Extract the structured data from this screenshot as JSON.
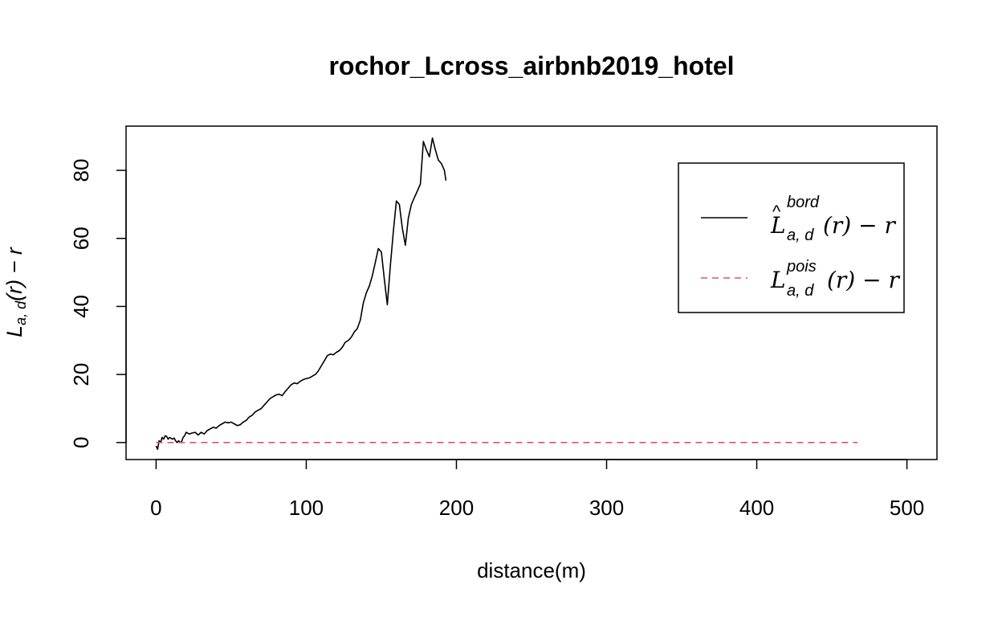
{
  "chart_data": {
    "type": "line",
    "title": "rochor_Lcross_airbnb2019_hotel",
    "xlabel": "distance(m)",
    "ylabel": {
      "main": "L",
      "sub": "a, d",
      "rest": "(r) − r"
    },
    "xlim": [
      -20,
      520
    ],
    "ylim": [
      -5,
      93
    ],
    "x_ticks": [
      0,
      100,
      200,
      300,
      400,
      500
    ],
    "y_ticks": [
      0,
      20,
      40,
      60,
      80
    ],
    "grid": false,
    "legend": {
      "position": "top-right",
      "entries": [
        {
          "main": "L",
          "hat": "^",
          "sup": "bord",
          "sub": "a, d",
          "rest": "(r) − r",
          "color": "#000000",
          "dash": "solid"
        },
        {
          "main": "L",
          "hat": "",
          "sup": "pois",
          "sub": "a, d",
          "rest": "(r) − r",
          "color": "#DF536B",
          "dash": "dashed"
        }
      ]
    },
    "series": [
      {
        "color": "#000000",
        "dash": "solid",
        "x": [
          0,
          1,
          2,
          3,
          4,
          5,
          6,
          7,
          8,
          9,
          10,
          11,
          12,
          13,
          14,
          15,
          16,
          17,
          18,
          19,
          20,
          22,
          24,
          26,
          28,
          30,
          32,
          34,
          36,
          38,
          40,
          42,
          44,
          46,
          48,
          50,
          52,
          54,
          56,
          58,
          60,
          62,
          64,
          66,
          68,
          70,
          72,
          74,
          76,
          78,
          80,
          82,
          84,
          86,
          88,
          90,
          92,
          94,
          96,
          98,
          100,
          102,
          104,
          106,
          108,
          110,
          112,
          114,
          116,
          118,
          120,
          122,
          124,
          126,
          128,
          130,
          132,
          134,
          136,
          138,
          140,
          142,
          144,
          146,
          148,
          150,
          152,
          154,
          156,
          158,
          160,
          162,
          164,
          166,
          168,
          170,
          172,
          174,
          176,
          178,
          180,
          182,
          184,
          186,
          188,
          190,
          192,
          193
        ],
        "y": [
          -1,
          -2,
          0.5,
          0,
          1.5,
          1,
          2,
          1.8,
          1,
          1.5,
          1.2,
          1,
          1.3,
          0.5,
          0,
          0.5,
          0,
          0.3,
          1.5,
          2,
          3,
          2.5,
          2.8,
          3,
          2.2,
          3,
          2.5,
          3.5,
          4,
          4.5,
          4.2,
          5,
          5.5,
          6,
          5.8,
          6,
          5.5,
          5,
          5.2,
          6,
          6.5,
          7.5,
          8,
          9,
          9.5,
          10,
          11,
          12,
          13,
          13.5,
          14,
          14.2,
          13.8,
          15,
          16,
          17,
          17.5,
          17.3,
          18,
          18.5,
          18.8,
          19,
          19.5,
          20,
          21,
          22.5,
          24,
          25.5,
          26,
          25.8,
          26.5,
          27,
          28,
          29.5,
          30,
          31,
          32.5,
          33.5,
          36,
          41,
          44,
          46,
          49,
          53,
          57,
          56,
          48,
          40.5,
          52,
          62,
          71,
          70,
          63,
          58,
          66,
          70,
          72,
          74,
          76,
          88.5,
          86,
          84,
          89.5,
          86,
          83,
          82,
          80,
          77
        ]
      },
      {
        "color": "#DF536B",
        "dash": "dashed",
        "x": [
          0,
          467
        ],
        "y": [
          0,
          0
        ]
      }
    ]
  }
}
